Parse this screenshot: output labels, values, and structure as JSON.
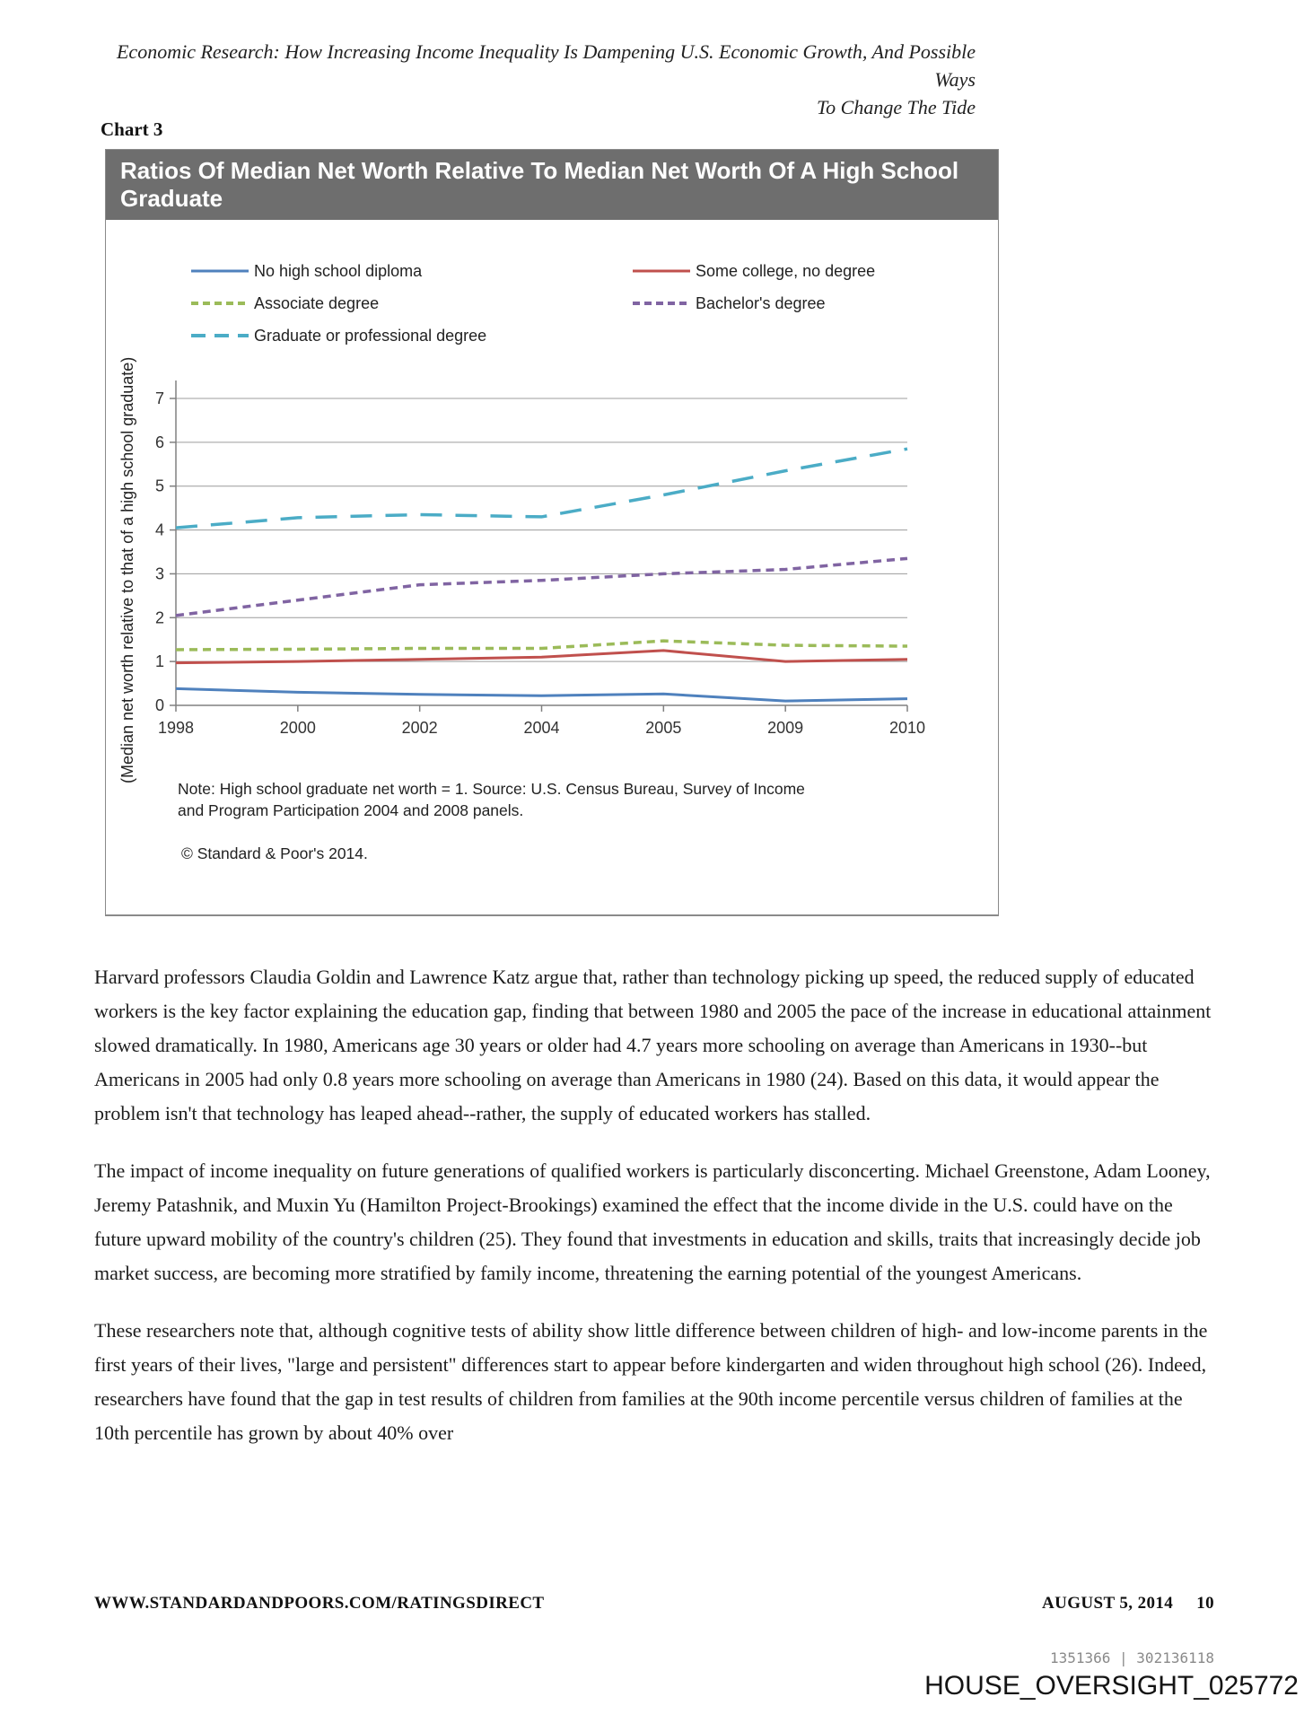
{
  "page": {
    "header_line1": "Economic Research: How Increasing Income Inequality Is Dampening U.S. Economic Growth, And Possible Ways",
    "header_line2": "To Change The Tide",
    "chart_label": "Chart 3"
  },
  "chart": {
    "title": "Ratios Of Median Net Worth Relative To Median Net Worth Of A High School Graduate",
    "ylabel": "(Median net worth relative to that of a high school graduate)",
    "note": "Note: High school graduate net worth = 1. Source: U.S. Census Bureau, Survey of Income and Program Participation 2004 and 2008 panels.",
    "copyright": "© Standard & Poor's 2014."
  },
  "chart_data": {
    "type": "line",
    "categories": [
      "1998",
      "2000",
      "2002",
      "2004",
      "2005",
      "2009",
      "2010"
    ],
    "series": [
      {
        "name": "No high school diploma",
        "color": "#4f81bd",
        "style": "solid",
        "values": [
          0.38,
          0.3,
          0.25,
          0.22,
          0.26,
          0.1,
          0.15
        ]
      },
      {
        "name": "Some college, no degree",
        "color": "#c0504d",
        "style": "solid",
        "values": [
          0.97,
          1.0,
          1.05,
          1.1,
          1.25,
          1.0,
          1.05
        ]
      },
      {
        "name": "Associate degree",
        "color": "#9bbb59",
        "style": "dash",
        "values": [
          1.27,
          1.28,
          1.3,
          1.3,
          1.47,
          1.37,
          1.35
        ]
      },
      {
        "name": "Bachelor's degree",
        "color": "#8064a2",
        "style": "dash",
        "values": [
          2.05,
          2.4,
          2.75,
          2.85,
          3.0,
          3.1,
          3.35
        ]
      },
      {
        "name": "Graduate or professional degree",
        "color": "#4bacc6",
        "style": "longdash",
        "values": [
          4.05,
          4.28,
          4.35,
          4.3,
          4.8,
          5.35,
          5.85
        ]
      }
    ],
    "ylim": [
      0,
      7
    ],
    "yticks": [
      0,
      1,
      2,
      3,
      4,
      5,
      6,
      7
    ],
    "grid": true,
    "legend_position": "top",
    "xlabel": "",
    "ylabel": "(Median net worth relative to that of a high school graduate)"
  },
  "legend": {
    "columns": [
      [
        0,
        2,
        4
      ],
      [
        1,
        3
      ]
    ]
  },
  "colors": {
    "grid": "#9c9c9c",
    "axis": "#808080",
    "title_bar_bg": "#6e6e6e",
    "title_bar_text": "#ffffff"
  },
  "body": {
    "paragraphs": [
      "Harvard professors Claudia Goldin and Lawrence Katz argue that, rather than technology picking up speed, the reduced supply of educated workers is the key factor explaining the education gap, finding that between 1980 and 2005 the pace of the increase in educational attainment slowed dramatically. In 1980, Americans age 30 years or older had 4.7 years more schooling on average than Americans in 1930--but Americans in 2005 had only 0.8 years more schooling on average than Americans in 1980 (24). Based on this data, it would appear the problem isn't that technology has leaped ahead--rather, the supply of educated workers has stalled.",
      "The impact of income inequality on future generations of qualified workers is particularly disconcerting. Michael Greenstone, Adam Looney, Jeremy Patashnik, and Muxin Yu (Hamilton Project-Brookings) examined the effect that the income divide in the U.S. could have on the future upward mobility of the country's children (25). They found that investments in education and skills, traits that increasingly decide job market success, are becoming more stratified by family income, threatening the earning potential of the youngest Americans.",
      "These researchers note that, although cognitive tests of ability show little difference between children of high- and low-income parents in the first years of their lives, \"large and persistent\" differences start to appear before kindergarten and widen throughout high school (26). Indeed, researchers have found that the gap in test results of children from families at the 90th income percentile versus children of families at the 10th percentile has grown by about 40% over"
    ]
  },
  "footer": {
    "website": "WWW.STANDARDANDPOORS.COM/RATINGSDIRECT",
    "date": "AUGUST 5, 2014",
    "page_number": "10",
    "doc_ids": "1351366 | 302136118",
    "watermark": "HOUSE_OVERSIGHT_025772"
  }
}
